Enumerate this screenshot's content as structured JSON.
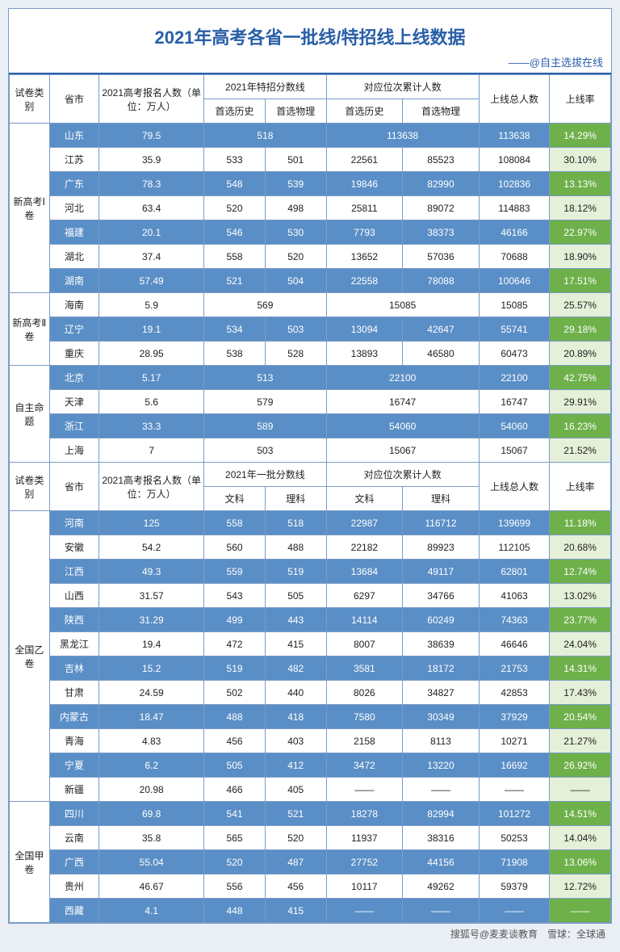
{
  "title": "2021年高考各省一批线/特招线上线数据",
  "subtitle": "——@自主选拔在线",
  "footer": "搜狐号@麦麦谈教育　雪球：全球通",
  "header1": {
    "cat": "试卷类别",
    "prov": "省市",
    "reg": "2021高考报名人数（单位：万人）",
    "score": "2021年特招分数线",
    "score_a": "首选历史",
    "score_b": "首选物理",
    "pos": "对应位次累计人数",
    "pos_a": "首选历史",
    "pos_b": "首选物理",
    "total": "上线总人数",
    "rate": "上线率"
  },
  "header2": {
    "cat": "试卷类别",
    "prov": "省市",
    "reg": "2021高考报名人数（单位：万人）",
    "score": "2021年一批分数线",
    "score_a": "文科",
    "score_b": "理科",
    "pos": "对应位次累计人数",
    "pos_a": "文科",
    "pos_b": "理科",
    "total": "上线总人数",
    "rate": "上线率"
  },
  "groups": [
    {
      "name": "新高考Ⅰ卷",
      "rows": [
        {
          "prov": "山东",
          "reg": "79.5",
          "sa": "518",
          "sb": "",
          "pa": "113638",
          "pb": "",
          "tot": "113638",
          "rate": "14.29%",
          "blue": true,
          "merged": true,
          "rateGreen": true
        },
        {
          "prov": "江苏",
          "reg": "35.9",
          "sa": "533",
          "sb": "501",
          "pa": "22561",
          "pb": "85523",
          "tot": "108084",
          "rate": "30.10%",
          "blue": false
        },
        {
          "prov": "广东",
          "reg": "78.3",
          "sa": "548",
          "sb": "539",
          "pa": "19846",
          "pb": "82990",
          "tot": "102836",
          "rate": "13.13%",
          "blue": true,
          "rateGreen": true
        },
        {
          "prov": "河北",
          "reg": "63.4",
          "sa": "520",
          "sb": "498",
          "pa": "25811",
          "pb": "89072",
          "tot": "114883",
          "rate": "18.12%",
          "blue": false
        },
        {
          "prov": "福建",
          "reg": "20.1",
          "sa": "546",
          "sb": "530",
          "pa": "7793",
          "pb": "38373",
          "tot": "46166",
          "rate": "22.97%",
          "blue": true,
          "rateGreen": true
        },
        {
          "prov": "湖北",
          "reg": "37.4",
          "sa": "558",
          "sb": "520",
          "pa": "13652",
          "pb": "57036",
          "tot": "70688",
          "rate": "18.90%",
          "blue": false
        },
        {
          "prov": "湖南",
          "reg": "57.49",
          "sa": "521",
          "sb": "504",
          "pa": "22558",
          "pb": "78088",
          "tot": "100646",
          "rate": "17.51%",
          "blue": true,
          "rateGreen": true
        }
      ]
    },
    {
      "name": "新高考Ⅱ卷",
      "rows": [
        {
          "prov": "海南",
          "reg": "5.9",
          "sa": "569",
          "sb": "",
          "pa": "15085",
          "pb": "",
          "tot": "15085",
          "rate": "25.57%",
          "blue": false,
          "merged": true
        },
        {
          "prov": "辽宁",
          "reg": "19.1",
          "sa": "534",
          "sb": "503",
          "pa": "13094",
          "pb": "42647",
          "tot": "55741",
          "rate": "29.18%",
          "blue": true,
          "rateGreen": true
        },
        {
          "prov": "重庆",
          "reg": "28.95",
          "sa": "538",
          "sb": "528",
          "pa": "13893",
          "pb": "46580",
          "tot": "60473",
          "rate": "20.89%",
          "blue": false
        }
      ]
    },
    {
      "name": "自主命题",
      "rows": [
        {
          "prov": "北京",
          "reg": "5.17",
          "sa": "513",
          "sb": "",
          "pa": "22100",
          "pb": "",
          "tot": "22100",
          "rate": "42.75%",
          "blue": true,
          "merged": true,
          "rateGreen": true
        },
        {
          "prov": "天津",
          "reg": "5.6",
          "sa": "579",
          "sb": "",
          "pa": "16747",
          "pb": "",
          "tot": "16747",
          "rate": "29.91%",
          "blue": false,
          "merged": true
        },
        {
          "prov": "浙江",
          "reg": "33.3",
          "sa": "589",
          "sb": "",
          "pa": "54060",
          "pb": "",
          "tot": "54060",
          "rate": "16.23%",
          "blue": true,
          "merged": true,
          "rateGreen": true
        },
        {
          "prov": "上海",
          "reg": "7",
          "sa": "503",
          "sb": "",
          "pa": "15067",
          "pb": "",
          "tot": "15067",
          "rate": "21.52%",
          "blue": false,
          "merged": true
        }
      ]
    }
  ],
  "groups2": [
    {
      "name": "全国乙卷",
      "rows": [
        {
          "prov": "河南",
          "reg": "125",
          "sa": "558",
          "sb": "518",
          "pa": "22987",
          "pb": "116712",
          "tot": "139699",
          "rate": "11.18%",
          "blue": true,
          "rateGreen": true
        },
        {
          "prov": "安徽",
          "reg": "54.2",
          "sa": "560",
          "sb": "488",
          "pa": "22182",
          "pb": "89923",
          "tot": "112105",
          "rate": "20.68%",
          "blue": false
        },
        {
          "prov": "江西",
          "reg": "49.3",
          "sa": "559",
          "sb": "519",
          "pa": "13684",
          "pb": "49117",
          "tot": "62801",
          "rate": "12.74%",
          "blue": true,
          "rateGreen": true
        },
        {
          "prov": "山西",
          "reg": "31.57",
          "sa": "543",
          "sb": "505",
          "pa": "6297",
          "pb": "34766",
          "tot": "41063",
          "rate": "13.02%",
          "blue": false
        },
        {
          "prov": "陕西",
          "reg": "31.29",
          "sa": "499",
          "sb": "443",
          "pa": "14114",
          "pb": "60249",
          "tot": "74363",
          "rate": "23.77%",
          "blue": true,
          "rateGreen": true
        },
        {
          "prov": "黑龙江",
          "reg": "19.4",
          "sa": "472",
          "sb": "415",
          "pa": "8007",
          "pb": "38639",
          "tot": "46646",
          "rate": "24.04%",
          "blue": false
        },
        {
          "prov": "吉林",
          "reg": "15.2",
          "sa": "519",
          "sb": "482",
          "pa": "3581",
          "pb": "18172",
          "tot": "21753",
          "rate": "14.31%",
          "blue": true,
          "rateGreen": true
        },
        {
          "prov": "甘肃",
          "reg": "24.59",
          "sa": "502",
          "sb": "440",
          "pa": "8026",
          "pb": "34827",
          "tot": "42853",
          "rate": "17.43%",
          "blue": false
        },
        {
          "prov": "内蒙古",
          "reg": "18.47",
          "sa": "488",
          "sb": "418",
          "pa": "7580",
          "pb": "30349",
          "tot": "37929",
          "rate": "20.54%",
          "blue": true,
          "rateGreen": true
        },
        {
          "prov": "青海",
          "reg": "4.83",
          "sa": "456",
          "sb": "403",
          "pa": "2158",
          "pb": "8113",
          "tot": "10271",
          "rate": "21.27%",
          "blue": false
        },
        {
          "prov": "宁夏",
          "reg": "6.2",
          "sa": "505",
          "sb": "412",
          "pa": "3472",
          "pb": "13220",
          "tot": "16692",
          "rate": "26.92%",
          "blue": true,
          "rateGreen": true
        },
        {
          "prov": "新疆",
          "reg": "20.98",
          "sa": "466",
          "sb": "405",
          "pa": "——",
          "pb": "——",
          "tot": "——",
          "rate": "——",
          "blue": false
        }
      ]
    },
    {
      "name": "全国甲卷",
      "rows": [
        {
          "prov": "四川",
          "reg": "69.8",
          "sa": "541",
          "sb": "521",
          "pa": "18278",
          "pb": "82994",
          "tot": "101272",
          "rate": "14.51%",
          "blue": true,
          "rateGreen": true
        },
        {
          "prov": "云南",
          "reg": "35.8",
          "sa": "565",
          "sb": "520",
          "pa": "11937",
          "pb": "38316",
          "tot": "50253",
          "rate": "14.04%",
          "blue": false
        },
        {
          "prov": "广西",
          "reg": "55.04",
          "sa": "520",
          "sb": "487",
          "pa": "27752",
          "pb": "44156",
          "tot": "71908",
          "rate": "13.06%",
          "blue": true,
          "rateGreen": true
        },
        {
          "prov": "贵州",
          "reg": "46.67",
          "sa": "556",
          "sb": "456",
          "pa": "10117",
          "pb": "49262",
          "tot": "59379",
          "rate": "12.72%",
          "blue": false
        },
        {
          "prov": "西藏",
          "reg": "4.1",
          "sa": "448",
          "sb": "415",
          "pa": "——",
          "pb": "——",
          "tot": "——",
          "rate": "——",
          "blue": true,
          "rateGreen": true
        }
      ]
    }
  ],
  "colors": {
    "blue_row": "#5a8ec6",
    "border": "#7a9cc6",
    "title": "#2a5fa8",
    "green": "#6eb04a",
    "green_lt": "#e5f0d8"
  }
}
